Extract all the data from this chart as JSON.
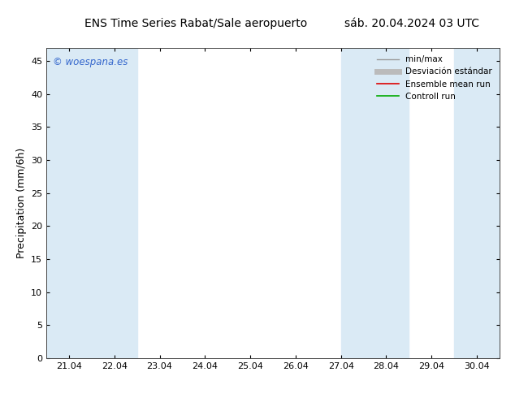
{
  "title_left": "ENS Time Series Rabat/Sale aeropuerto",
  "title_right": "sáb. 20.04.2024 03 UTC",
  "ylabel": "Precipitation (mm/6h)",
  "ylim": [
    0,
    47
  ],
  "yticks": [
    0,
    5,
    10,
    15,
    20,
    25,
    30,
    35,
    40,
    45
  ],
  "xtick_labels": [
    "21.04",
    "22.04",
    "23.04",
    "24.04",
    "25.04",
    "26.04",
    "27.04",
    "28.04",
    "29.04",
    "30.04"
  ],
  "xtick_positions": [
    21,
    22,
    23,
    24,
    25,
    26,
    27,
    28,
    29,
    30
  ],
  "xlim": [
    20.5,
    30.5
  ],
  "band_positions": [
    [
      20.5,
      21.5
    ],
    [
      21.5,
      22.5
    ],
    [
      27.0,
      27.5
    ],
    [
      27.5,
      28.5
    ],
    [
      29.5,
      30.5
    ]
  ],
  "band_color": "#daeaf5",
  "bg_color": "#ffffff",
  "watermark_text": "© woespana.es",
  "watermark_color": "#3366cc",
  "legend_labels": [
    "min/max",
    "Desviación estándar",
    "Ensemble mean run",
    "Controll run"
  ],
  "legend_colors": [
    "#999999",
    "#bbbbbb",
    "#dd0000",
    "#00aa00"
  ],
  "legend_lws": [
    1.0,
    5.0,
    1.2,
    1.2
  ],
  "title_fontsize": 10,
  "tick_fontsize": 8,
  "ylabel_fontsize": 9,
  "legend_fontsize": 7.5
}
